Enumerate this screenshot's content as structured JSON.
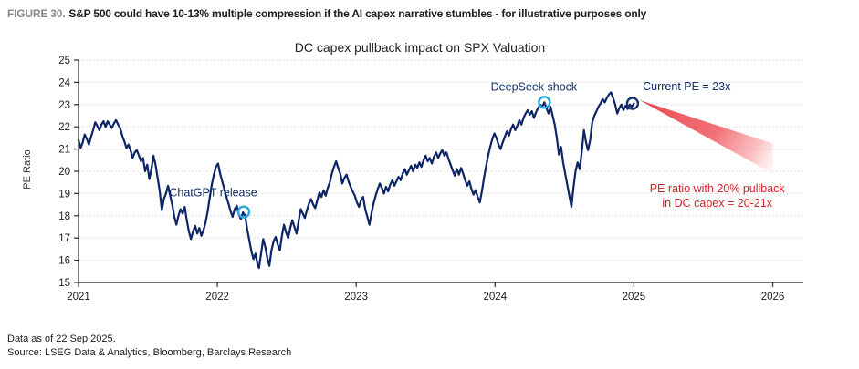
{
  "header": {
    "figure_label": "FIGURE 30.",
    "figure_title": "S&P 500 could have 10-13% multiple compression if the AI capex narrative stumbles - for illustrative purposes only"
  },
  "footer": {
    "line1": "Data as of 22 Sep 2025.",
    "line2": "Source: LSEG Data & Analytics, Bloomberg, Barclays Research"
  },
  "colors": {
    "line": "#0d2566",
    "cyan_marker": "#2aa7e0",
    "navy_marker": "#16306e",
    "annotation_text": "#13306b",
    "red_text": "#d0202a",
    "wedge_red": "#e63e46",
    "grid": "#d6d6d6",
    "axis": "#3a3a3a",
    "tick_label": "#1c1c1c"
  },
  "chart_data": {
    "type": "line",
    "title": "DC capex pullback impact on SPX Valuation",
    "xlabel": "",
    "ylabel": "PE Ratio",
    "xlim": [
      2021,
      2026.22
    ],
    "ylim": [
      15,
      25
    ],
    "x_ticks": [
      2021,
      2022,
      2023,
      2024,
      2025,
      2026
    ],
    "y_ticks": [
      15,
      16,
      17,
      18,
      19,
      20,
      21,
      22,
      23,
      24,
      25
    ],
    "grid": "horizontal dotted gridlines at each PE integer",
    "legend_position": "none",
    "series": [
      {
        "name": "S&P 500 PE ratio",
        "color": "#0d2566",
        "points": [
          [
            2021.0,
            21.4
          ],
          [
            2021.015,
            21.05
          ],
          [
            2021.03,
            21.3
          ],
          [
            2021.045,
            21.65
          ],
          [
            2021.06,
            21.45
          ],
          [
            2021.075,
            21.2
          ],
          [
            2021.09,
            21.55
          ],
          [
            2021.105,
            21.85
          ],
          [
            2021.12,
            22.2
          ],
          [
            2021.135,
            22.05
          ],
          [
            2021.15,
            21.85
          ],
          [
            2021.165,
            22.1
          ],
          [
            2021.18,
            22.25
          ],
          [
            2021.195,
            22.0
          ],
          [
            2021.21,
            22.25
          ],
          [
            2021.225,
            22.1
          ],
          [
            2021.24,
            21.95
          ],
          [
            2021.255,
            22.15
          ],
          [
            2021.27,
            22.3
          ],
          [
            2021.285,
            22.1
          ],
          [
            2021.3,
            21.95
          ],
          [
            2021.315,
            21.6
          ],
          [
            2021.33,
            21.35
          ],
          [
            2021.345,
            21.05
          ],
          [
            2021.36,
            21.2
          ],
          [
            2021.375,
            20.95
          ],
          [
            2021.39,
            20.6
          ],
          [
            2021.405,
            20.85
          ],
          [
            2021.42,
            20.95
          ],
          [
            2021.435,
            20.7
          ],
          [
            2021.45,
            20.45
          ],
          [
            2021.465,
            20.6
          ],
          [
            2021.48,
            20.0
          ],
          [
            2021.495,
            20.3
          ],
          [
            2021.51,
            19.65
          ],
          [
            2021.525,
            20.1
          ],
          [
            2021.54,
            20.7
          ],
          [
            2021.555,
            20.3
          ],
          [
            2021.57,
            19.7
          ],
          [
            2021.585,
            19.1
          ],
          [
            2021.6,
            18.25
          ],
          [
            2021.615,
            18.75
          ],
          [
            2021.63,
            19.0
          ],
          [
            2021.645,
            19.35
          ],
          [
            2021.66,
            18.9
          ],
          [
            2021.675,
            18.5
          ],
          [
            2021.69,
            17.95
          ],
          [
            2021.705,
            17.6
          ],
          [
            2021.72,
            18.0
          ],
          [
            2021.735,
            18.3
          ],
          [
            2021.75,
            18.1
          ],
          [
            2021.765,
            18.4
          ],
          [
            2021.78,
            17.8
          ],
          [
            2021.795,
            17.3
          ],
          [
            2021.81,
            16.95
          ],
          [
            2021.825,
            17.3
          ],
          [
            2021.84,
            17.55
          ],
          [
            2021.855,
            17.2
          ],
          [
            2021.87,
            17.45
          ],
          [
            2021.885,
            17.1
          ],
          [
            2021.9,
            17.35
          ],
          [
            2021.915,
            17.7
          ],
          [
            2021.93,
            18.2
          ],
          [
            2021.945,
            18.8
          ],
          [
            2021.96,
            19.4
          ],
          [
            2021.975,
            19.85
          ],
          [
            2021.99,
            20.2
          ],
          [
            2022.005,
            20.35
          ],
          [
            2022.02,
            19.9
          ],
          [
            2022.035,
            19.55
          ],
          [
            2022.05,
            19.2
          ],
          [
            2022.065,
            18.85
          ],
          [
            2022.08,
            18.55
          ],
          [
            2022.095,
            18.2
          ],
          [
            2022.11,
            17.95
          ],
          [
            2022.125,
            18.3
          ],
          [
            2022.14,
            18.45
          ],
          [
            2022.155,
            18.05
          ],
          [
            2022.17,
            17.85
          ],
          [
            2022.185,
            18.15
          ],
          [
            2022.2,
            18.0
          ],
          [
            2022.215,
            17.4
          ],
          [
            2022.23,
            16.9
          ],
          [
            2022.245,
            16.4
          ],
          [
            2022.26,
            16.05
          ],
          [
            2022.275,
            16.3
          ],
          [
            2022.29,
            15.8
          ],
          [
            2022.3,
            15.65
          ],
          [
            2022.315,
            16.3
          ],
          [
            2022.33,
            16.95
          ],
          [
            2022.345,
            16.6
          ],
          [
            2022.36,
            16.1
          ],
          [
            2022.375,
            15.75
          ],
          [
            2022.39,
            16.45
          ],
          [
            2022.405,
            16.85
          ],
          [
            2022.42,
            17.05
          ],
          [
            2022.435,
            16.7
          ],
          [
            2022.45,
            16.45
          ],
          [
            2022.465,
            17.1
          ],
          [
            2022.48,
            17.6
          ],
          [
            2022.495,
            17.25
          ],
          [
            2022.51,
            17.0
          ],
          [
            2022.525,
            17.45
          ],
          [
            2022.54,
            17.8
          ],
          [
            2022.555,
            17.5
          ],
          [
            2022.57,
            17.2
          ],
          [
            2022.585,
            17.75
          ],
          [
            2022.6,
            18.3
          ],
          [
            2022.615,
            18.1
          ],
          [
            2022.63,
            17.9
          ],
          [
            2022.645,
            18.25
          ],
          [
            2022.66,
            18.55
          ],
          [
            2022.675,
            18.75
          ],
          [
            2022.69,
            18.5
          ],
          [
            2022.705,
            18.35
          ],
          [
            2022.72,
            18.7
          ],
          [
            2022.735,
            19.05
          ],
          [
            2022.75,
            18.85
          ],
          [
            2022.765,
            19.15
          ],
          [
            2022.78,
            18.9
          ],
          [
            2022.795,
            19.25
          ],
          [
            2022.81,
            19.5
          ],
          [
            2022.825,
            19.9
          ],
          [
            2022.84,
            20.2
          ],
          [
            2022.855,
            20.45
          ],
          [
            2022.87,
            20.15
          ],
          [
            2022.885,
            19.9
          ],
          [
            2022.9,
            19.45
          ],
          [
            2022.915,
            19.7
          ],
          [
            2022.93,
            19.85
          ],
          [
            2022.945,
            19.55
          ],
          [
            2022.96,
            19.3
          ],
          [
            2022.975,
            19.1
          ],
          [
            2022.99,
            18.9
          ],
          [
            2023.005,
            18.6
          ],
          [
            2023.02,
            18.4
          ],
          [
            2023.035,
            18.7
          ],
          [
            2023.05,
            18.85
          ],
          [
            2023.065,
            18.3
          ],
          [
            2023.08,
            17.95
          ],
          [
            2023.095,
            17.6
          ],
          [
            2023.11,
            18.1
          ],
          [
            2023.125,
            18.55
          ],
          [
            2023.14,
            18.9
          ],
          [
            2023.155,
            19.2
          ],
          [
            2023.17,
            19.45
          ],
          [
            2023.185,
            19.25
          ],
          [
            2023.2,
            19.0
          ],
          [
            2023.215,
            19.3
          ],
          [
            2023.23,
            19.1
          ],
          [
            2023.245,
            19.4
          ],
          [
            2023.26,
            19.6
          ],
          [
            2023.275,
            19.35
          ],
          [
            2023.29,
            19.55
          ],
          [
            2023.305,
            19.75
          ],
          [
            2023.32,
            19.6
          ],
          [
            2023.335,
            19.9
          ],
          [
            2023.35,
            20.1
          ],
          [
            2023.365,
            19.85
          ],
          [
            2023.38,
            20.05
          ],
          [
            2023.395,
            20.25
          ],
          [
            2023.41,
            20.0
          ],
          [
            2023.425,
            20.3
          ],
          [
            2023.44,
            20.15
          ],
          [
            2023.455,
            20.4
          ],
          [
            2023.47,
            20.2
          ],
          [
            2023.485,
            20.5
          ],
          [
            2023.5,
            20.7
          ],
          [
            2023.515,
            20.45
          ],
          [
            2023.53,
            20.6
          ],
          [
            2023.545,
            20.35
          ],
          [
            2023.56,
            20.65
          ],
          [
            2023.575,
            20.85
          ],
          [
            2023.59,
            20.6
          ],
          [
            2023.605,
            20.8
          ],
          [
            2023.62,
            20.95
          ],
          [
            2023.635,
            20.7
          ],
          [
            2023.65,
            20.85
          ],
          [
            2023.665,
            20.55
          ],
          [
            2023.68,
            20.3
          ],
          [
            2023.695,
            20.05
          ],
          [
            2023.71,
            19.8
          ],
          [
            2023.725,
            20.1
          ],
          [
            2023.74,
            19.85
          ],
          [
            2023.755,
            20.15
          ],
          [
            2023.77,
            19.9
          ],
          [
            2023.785,
            19.6
          ],
          [
            2023.8,
            19.35
          ],
          [
            2023.815,
            19.55
          ],
          [
            2023.83,
            19.2
          ],
          [
            2023.845,
            18.95
          ],
          [
            2023.86,
            19.15
          ],
          [
            2023.875,
            18.85
          ],
          [
            2023.89,
            18.6
          ],
          [
            2023.905,
            19.1
          ],
          [
            2023.92,
            19.7
          ],
          [
            2023.935,
            20.2
          ],
          [
            2023.95,
            20.7
          ],
          [
            2023.965,
            21.1
          ],
          [
            2023.98,
            21.45
          ],
          [
            2023.995,
            21.7
          ],
          [
            2024.01,
            21.5
          ],
          [
            2024.025,
            21.2
          ],
          [
            2024.04,
            21.0
          ],
          [
            2024.055,
            21.3
          ],
          [
            2024.07,
            21.55
          ],
          [
            2024.085,
            21.8
          ],
          [
            2024.1,
            21.6
          ],
          [
            2024.115,
            21.9
          ],
          [
            2024.13,
            22.1
          ],
          [
            2024.145,
            21.85
          ],
          [
            2024.16,
            22.05
          ],
          [
            2024.175,
            22.3
          ],
          [
            2024.19,
            22.1
          ],
          [
            2024.205,
            22.4
          ],
          [
            2024.22,
            22.6
          ],
          [
            2024.235,
            22.75
          ],
          [
            2024.25,
            22.55
          ],
          [
            2024.265,
            22.7
          ],
          [
            2024.28,
            22.4
          ],
          [
            2024.295,
            22.65
          ],
          [
            2024.31,
            22.85
          ],
          [
            2024.325,
            23.0
          ],
          [
            2024.34,
            22.9
          ],
          [
            2024.355,
            23.1
          ],
          [
            2024.37,
            22.85
          ],
          [
            2024.385,
            22.6
          ],
          [
            2024.4,
            22.9
          ],
          [
            2024.415,
            22.5
          ],
          [
            2024.43,
            22.1
          ],
          [
            2024.445,
            21.5
          ],
          [
            2024.46,
            20.75
          ],
          [
            2024.475,
            21.1
          ],
          [
            2024.49,
            20.4
          ],
          [
            2024.505,
            19.9
          ],
          [
            2024.52,
            19.4
          ],
          [
            2024.535,
            18.9
          ],
          [
            2024.55,
            18.4
          ],
          [
            2024.565,
            19.3
          ],
          [
            2024.58,
            20.0
          ],
          [
            2024.595,
            20.4
          ],
          [
            2024.61,
            20.1
          ],
          [
            2024.625,
            20.9
          ],
          [
            2024.64,
            21.85
          ],
          [
            2024.655,
            21.3
          ],
          [
            2024.67,
            20.95
          ],
          [
            2024.685,
            21.4
          ],
          [
            2024.7,
            22.2
          ],
          [
            2024.715,
            22.5
          ],
          [
            2024.73,
            22.7
          ],
          [
            2024.745,
            22.9
          ],
          [
            2024.76,
            23.05
          ],
          [
            2024.775,
            23.25
          ],
          [
            2024.79,
            23.1
          ],
          [
            2024.805,
            23.3
          ],
          [
            2024.82,
            23.45
          ],
          [
            2024.835,
            23.55
          ],
          [
            2024.85,
            23.3
          ],
          [
            2024.865,
            23.0
          ],
          [
            2024.88,
            22.6
          ],
          [
            2024.895,
            22.85
          ],
          [
            2024.91,
            23.0
          ],
          [
            2024.925,
            22.75
          ],
          [
            2024.94,
            22.95
          ],
          [
            2024.955,
            22.8
          ],
          [
            2024.97,
            23.0
          ],
          [
            2024.985,
            22.9
          ],
          [
            2025.0,
            23.05
          ]
        ]
      }
    ],
    "annotations": [
      {
        "id": "chatgpt-release",
        "label": "ChatGPT release",
        "marker_x": 2022.19,
        "marker_y": 18.17,
        "label_x": 2021.97,
        "label_y": 18.87,
        "marker": "open-circle",
        "marker_color": "#2aa7e0",
        "label_color": "#13306b"
      },
      {
        "id": "deepseek-shock",
        "label": "DeepSeek shock",
        "marker_x": 2024.355,
        "marker_y": 23.1,
        "label_x": 2024.28,
        "label_y": 23.62,
        "marker": "open-circle",
        "marker_color": "#2aa7e0",
        "label_color": "#13306b"
      },
      {
        "id": "current-pe",
        "label": "Current PE = 23x",
        "marker_x": 2024.99,
        "marker_y": 23.05,
        "label_x": 2025.38,
        "label_y": 23.65,
        "marker": "open-circle",
        "marker_color": "#16306e",
        "label_color": "#13306b"
      }
    ],
    "projection": {
      "description": "red fan wedge showing illustrative PE compression",
      "tip": [
        2025.04,
        23.2
      ],
      "end_top": [
        2026.0,
        21.25
      ],
      "end_bottom": [
        2026.0,
        19.9
      ],
      "color": "#e63e46",
      "label_line1": "PE ratio with 20% pullback",
      "label_line2": "in DC capex = 20-21x",
      "label_x": 2025.6,
      "label_y1": 19.05,
      "label_y2": 18.4,
      "text_color": "#d0202a"
    }
  }
}
